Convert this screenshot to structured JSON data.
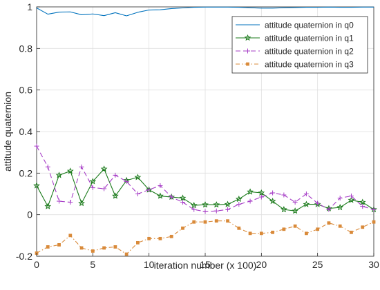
{
  "chart_data": {
    "type": "line",
    "title": "",
    "xlabel": "iteration number (x 100)",
    "ylabel": "attitude quaternion",
    "xlim": [
      0,
      30
    ],
    "ylim": [
      -0.2,
      1
    ],
    "xticks": [
      0,
      5,
      10,
      15,
      20,
      25,
      30
    ],
    "yticks": [
      -0.2,
      0,
      0.2,
      0.4,
      0.6,
      0.8,
      1
    ],
    "xtick_labels": [
      "0",
      "5",
      "10",
      "15",
      "20",
      "25",
      "30"
    ],
    "ytick_labels": [
      "-0.2",
      "0",
      "0.2",
      "0.4",
      "0.6",
      "0.8",
      "1"
    ],
    "grid": true,
    "legend_position": "top-right",
    "x": [
      0,
      1,
      2,
      3,
      4,
      5,
      6,
      7,
      8,
      9,
      10,
      11,
      12,
      13,
      14,
      15,
      16,
      17,
      18,
      19,
      20,
      21,
      22,
      23,
      24,
      25,
      26,
      27,
      28,
      29,
      30
    ],
    "series": [
      {
        "name": "attitude quaternion in q0",
        "color": "#0072bd",
        "dash": "",
        "marker": "none",
        "values": [
          0.995,
          0.965,
          0.975,
          0.976,
          0.962,
          0.966,
          0.958,
          0.972,
          0.957,
          0.974,
          0.985,
          0.986,
          0.992,
          0.995,
          0.998,
          0.999,
          0.999,
          0.999,
          0.998,
          0.996,
          0.994,
          0.994,
          0.996,
          0.997,
          0.998,
          0.998,
          0.999,
          0.998,
          0.998,
          0.999,
          0.999
        ]
      },
      {
        "name": "attitude quaternion in q1",
        "color": "#1a7a1a",
        "dash": "",
        "marker": "star",
        "values": [
          0.14,
          0.04,
          0.19,
          0.21,
          0.055,
          0.16,
          0.22,
          0.09,
          0.165,
          0.18,
          0.12,
          0.09,
          0.085,
          0.08,
          0.045,
          0.048,
          0.048,
          0.05,
          0.075,
          0.11,
          0.105,
          0.065,
          0.025,
          0.018,
          0.05,
          0.05,
          0.03,
          0.035,
          0.07,
          0.06,
          0.025
        ]
      },
      {
        "name": "attitude quaternion in q2",
        "color": "#a63cc6",
        "dash": "7,4",
        "marker": "plus",
        "values": [
          0.33,
          0.23,
          0.065,
          0.06,
          0.23,
          0.13,
          0.125,
          0.19,
          0.16,
          0.1,
          0.12,
          0.14,
          0.085,
          0.06,
          0.025,
          0.015,
          0.018,
          0.025,
          0.05,
          0.065,
          0.085,
          0.105,
          0.095,
          0.06,
          0.1,
          0.055,
          0.025,
          0.08,
          0.09,
          0.04,
          0.025
        ]
      },
      {
        "name": "attitude quaternion in q3",
        "color": "#d98a3a",
        "dash": "6,3,1.5,3",
        "marker": "square",
        "values": [
          -0.185,
          -0.155,
          -0.145,
          -0.1,
          -0.16,
          -0.175,
          -0.16,
          -0.155,
          -0.19,
          -0.135,
          -0.115,
          -0.115,
          -0.105,
          -0.065,
          -0.035,
          -0.035,
          -0.03,
          -0.03,
          -0.065,
          -0.09,
          -0.09,
          -0.085,
          -0.07,
          -0.055,
          -0.09,
          -0.07,
          -0.04,
          -0.055,
          -0.085,
          -0.06,
          -0.035
        ]
      }
    ]
  }
}
